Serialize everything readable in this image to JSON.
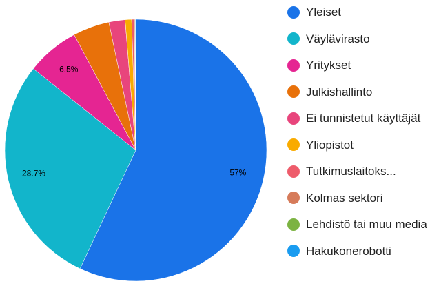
{
  "chart_data": {
    "type": "pie",
    "categories": [
      "Yleiset",
      "Väylävirasto",
      "Yritykset",
      "Julkishallinto",
      "Ei tunnistetut käyttäjät",
      "Yliopistot",
      "Tutkimuslaitoks...",
      "Kolmas sektori",
      "Lehdistö tai muu media",
      "Hakukonerobotti"
    ],
    "values": [
      57,
      28.7,
      6.5,
      4.5,
      2,
      0.8,
      0.3,
      0.1,
      0.05,
      0.05
    ],
    "value_labels": [
      "57%",
      "28.7%",
      "6.5%",
      null,
      null,
      null,
      null,
      null,
      null,
      null
    ],
    "colors": [
      "#1a73e8",
      "#12b5cb",
      "#e52592",
      "#e8710a",
      "#e8457c",
      "#f9ab00",
      "#ee5c6b",
      "#d67b5a",
      "#7cb342",
      "#1a9cf0"
    ],
    "legend": "right"
  }
}
